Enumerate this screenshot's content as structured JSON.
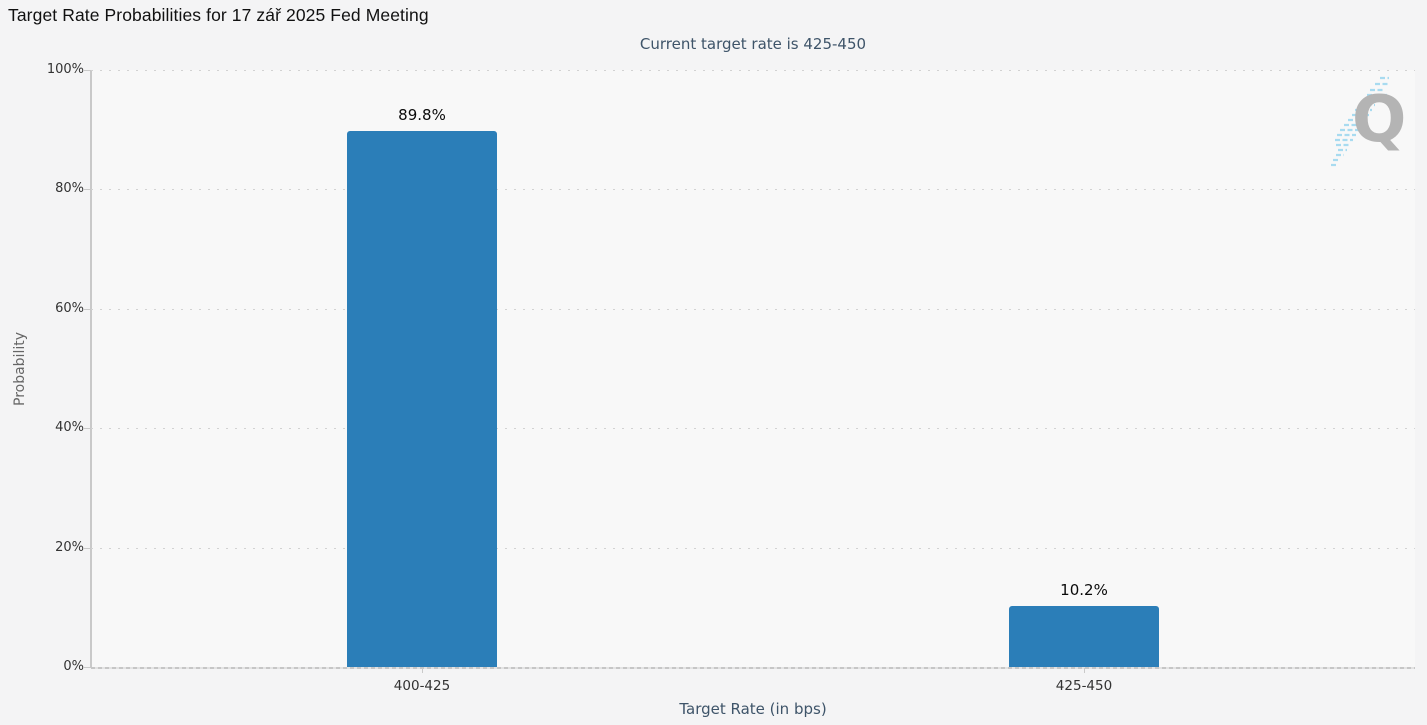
{
  "header": {
    "menu_icon": "hamburger-icon"
  },
  "watermark": {
    "letter": "Q"
  },
  "colors": {
    "background": "#f4f4f5",
    "plot_background": "#f8f8f8",
    "bar": "#2b7eb8",
    "gridline": "#d2d2d2",
    "axis_line": "#c9c9c9",
    "navy_text": "#3e5469",
    "tick_text": "#333333",
    "title_text": "#111111",
    "watermark_gray": "#b4b4b4",
    "watermark_blue": "#a8dbf0"
  },
  "chart_data": {
    "type": "bar",
    "title": "Target Rate Probabilities for 17 zář 2025 Fed Meeting",
    "subtitle": "Current target rate is 425-450",
    "categories": [
      "400-425",
      "425-450"
    ],
    "values": [
      89.8,
      10.2
    ],
    "value_labels": [
      "89.8%",
      "10.2%"
    ],
    "xlabel": "Target Rate (in bps)",
    "ylabel": "Probability",
    "ylim": [
      0,
      100
    ],
    "yticks": [
      0,
      20,
      40,
      60,
      80,
      100
    ],
    "ytick_labels": [
      "0%",
      "20%",
      "40%",
      "60%",
      "80%",
      "100%"
    ],
    "bar_color": "#2b7eb8",
    "grid": "dotted horizontal",
    "legend": false
  }
}
